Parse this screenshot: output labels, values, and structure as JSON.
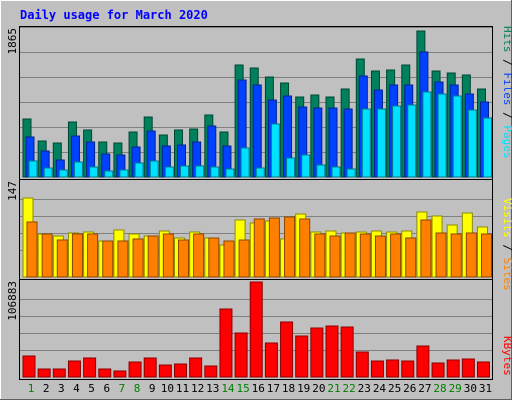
{
  "title": "Daily usage for March 2020",
  "colors": {
    "background": "#c0c0c0",
    "title": "#0000ff",
    "grid": "#808080",
    "weekday_label": "#008000",
    "hits": "#00805c",
    "files": "#0040ff",
    "pages": "#00e0ff",
    "visits": "#ffff00",
    "sites": "#ff8000",
    "kbytes": "#ff0000"
  },
  "chart_data": [
    {
      "type": "bar",
      "name": "hits-files-pages",
      "categories": [
        "1",
        "2",
        "3",
        "4",
        "5",
        "6",
        "7",
        "8",
        "9",
        "10",
        "11",
        "12",
        "13",
        "14",
        "15",
        "16",
        "17",
        "18",
        "19",
        "20",
        "21",
        "22",
        "23",
        "24",
        "25",
        "26",
        "27",
        "28",
        "29",
        "30",
        "31"
      ],
      "ymax_label": "1865",
      "ylim": [
        0,
        1865
      ],
      "legend": [
        "Pages",
        "Files",
        "Hits"
      ],
      "series": [
        {
          "name": "Hits",
          "values": [
            720,
            450,
            420,
            690,
            580,
            440,
            420,
            560,
            740,
            520,
            590,
            600,
            770,
            560,
            1390,
            1350,
            1240,
            1170,
            1000,
            1020,
            1000,
            1090,
            1470,
            1320,
            1330,
            1390,
            1820,
            1320,
            1290,
            1270,
            1100
          ]
        },
        {
          "name": "Files",
          "values": [
            500,
            320,
            210,
            510,
            430,
            280,
            270,
            370,
            570,
            390,
            400,
            430,
            630,
            390,
            1210,
            1140,
            960,
            1010,
            870,
            860,
            860,
            840,
            1260,
            1080,
            1150,
            1150,
            1560,
            1180,
            1140,
            1030,
            930
          ]
        },
        {
          "name": "Pages",
          "values": [
            200,
            110,
            85,
            190,
            130,
            75,
            85,
            170,
            200,
            120,
            140,
            140,
            130,
            100,
            360,
            110,
            660,
            240,
            270,
            155,
            125,
            95,
            840,
            850,
            880,
            890,
            1060,
            1030,
            1010,
            830,
            730
          ]
        }
      ]
    },
    {
      "type": "bar",
      "name": "visits-sites",
      "categories": [
        "1",
        "2",
        "3",
        "4",
        "5",
        "6",
        "7",
        "8",
        "9",
        "10",
        "11",
        "12",
        "13",
        "14",
        "15",
        "16",
        "17",
        "18",
        "19",
        "20",
        "21",
        "22",
        "23",
        "24",
        "25",
        "26",
        "27",
        "28",
        "29",
        "30",
        "31"
      ],
      "ymax_label": "147",
      "ylim": [
        0,
        147
      ],
      "legend": [
        "Sites",
        "Visits"
      ],
      "series": [
        {
          "name": "Visits",
          "values": [
            122,
            66,
            63,
            68,
            70,
            56,
            73,
            67,
            64,
            71,
            60,
            70,
            61,
            50,
            88,
            83,
            87,
            59,
            98,
            69,
            71,
            68,
            70,
            71,
            70,
            71,
            100,
            95,
            80,
            99,
            77
          ]
        },
        {
          "name": "Sites",
          "values": [
            85,
            66,
            58,
            66,
            67,
            56,
            55,
            59,
            64,
            66,
            57,
            66,
            61,
            55,
            57,
            90,
            92,
            93,
            90,
            66,
            64,
            68,
            66,
            63,
            66,
            61,
            88,
            68,
            66,
            68,
            66
          ]
        }
      ]
    },
    {
      "type": "bar",
      "name": "kbytes",
      "categories": [
        "1",
        "2",
        "3",
        "4",
        "5",
        "6",
        "7",
        "8",
        "9",
        "10",
        "11",
        "12",
        "13",
        "14",
        "15",
        "16",
        "17",
        "18",
        "19",
        "20",
        "21",
        "22",
        "23",
        "24",
        "25",
        "26",
        "27",
        "28",
        "29",
        "30",
        "31"
      ],
      "ymax_label": "106883",
      "ylim": [
        0,
        106883
      ],
      "legend": [
        "KBytes"
      ],
      "series": [
        {
          "name": "KBytes",
          "values": [
            24000,
            9000,
            9500,
            18500,
            21500,
            9000,
            6700,
            16500,
            21500,
            13000,
            14500,
            21000,
            12000,
            76000,
            49500,
            106883,
            38500,
            61500,
            46000,
            55000,
            57500,
            56000,
            28000,
            18500,
            19500,
            18000,
            34500,
            15500,
            19000,
            20500,
            17000
          ]
        }
      ]
    }
  ]
}
